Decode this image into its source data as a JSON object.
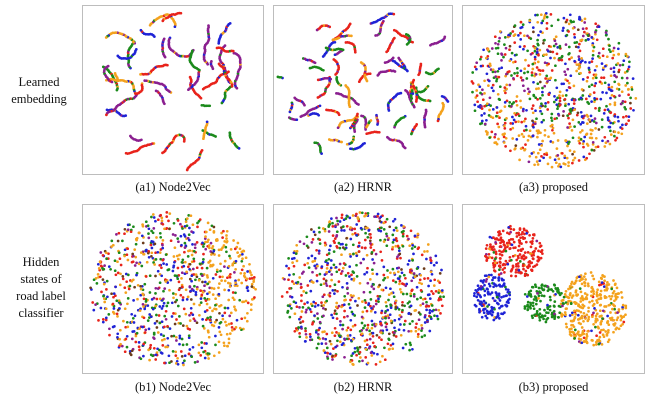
{
  "row_labels": [
    {
      "lines": [
        "Learned",
        "embedding"
      ]
    },
    {
      "lines": [
        "Hidden",
        "states of",
        "road label",
        "classifier"
      ]
    }
  ],
  "colors": [
    "#f4a21d",
    "#e8231b",
    "#1f23d6",
    "#1b8a1b",
    "#8a1f8f",
    "#6b3b1a"
  ],
  "chart_data": [
    {
      "type": "scatter",
      "title": "",
      "caption": "(a1) Node2Vec",
      "xlabel": "",
      "ylabel": "",
      "layout": "segments"
    },
    {
      "type": "scatter",
      "title": "",
      "caption": "(a2) HRNR",
      "xlabel": "",
      "ylabel": "",
      "layout": "segments"
    },
    {
      "type": "scatter",
      "title": "",
      "caption": "(a3) proposed",
      "xlabel": "",
      "ylabel": "",
      "layout": "blob"
    },
    {
      "type": "scatter",
      "title": "",
      "caption": "(b1) Node2Vec",
      "xlabel": "",
      "ylabel": "",
      "layout": "blob"
    },
    {
      "type": "scatter",
      "title": "",
      "caption": "(b2) HRNR",
      "xlabel": "",
      "ylabel": "",
      "layout": "blob"
    },
    {
      "type": "scatter",
      "title": "",
      "caption": "(b3) proposed",
      "xlabel": "",
      "ylabel": "",
      "layout": "clusters"
    }
  ]
}
